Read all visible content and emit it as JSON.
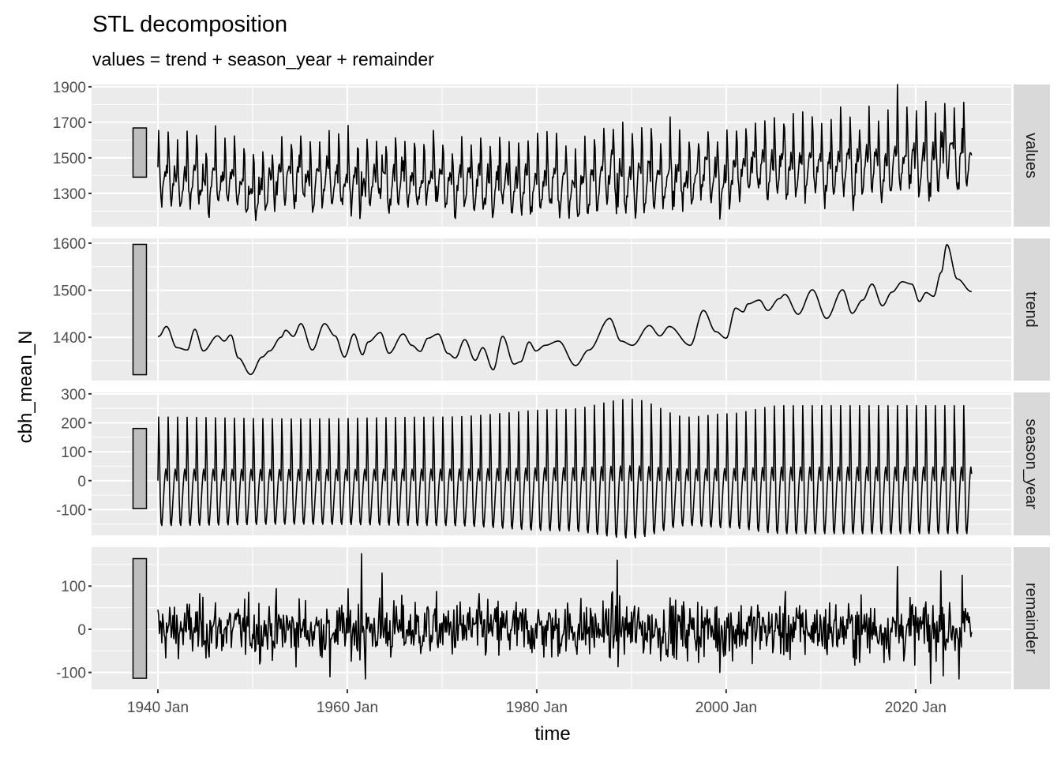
{
  "chart_data": {
    "type": "line",
    "title": "STL decomposition",
    "subtitle": "values = trend + season_year + remainder",
    "xlabel": "time",
    "ylabel": "cbh_mean_N",
    "x_range": [
      "1940 Jan",
      "2025 Dec"
    ],
    "xlim": [
      1933.0,
      2030.1
    ],
    "x_ticks": [
      {
        "value": 1940,
        "label": "1940 Jan"
      },
      {
        "value": 1960,
        "label": "1960 Jan"
      },
      {
        "value": 1980,
        "label": "1980 Jan"
      },
      {
        "value": 2000,
        "label": "2000 Jan"
      },
      {
        "value": 2020,
        "label": "2020 Jan"
      }
    ],
    "x_minor": [
      1950,
      1970,
      1990,
      2010
    ],
    "grid": true,
    "scale_bar_range": 277,
    "facets": [
      {
        "name": "values",
        "ylim": [
          1113,
          1913
        ],
        "ticks": [
          "1300",
          "1500",
          "1700",
          "1900"
        ],
        "minor": [
          1200,
          1400,
          1600,
          1800
        ]
      },
      {
        "name": "trend",
        "ylim": [
          1308,
          1610
        ],
        "ticks": [
          "1400",
          "1500",
          "1600"
        ],
        "minor": [
          1350,
          1450,
          1550
        ]
      },
      {
        "name": "season_year",
        "ylim": [
          -189,
          305
        ],
        "ticks": [
          "-100",
          "0",
          "100",
          "200",
          "300"
        ],
        "minor": [
          -150,
          -50,
          50,
          150,
          250
        ]
      },
      {
        "name": "remainder",
        "ylim": [
          -139,
          190
        ],
        "ticks": [
          "-100",
          "0",
          "100"
        ],
        "minor": [
          -50,
          50,
          150
        ]
      }
    ],
    "series": {
      "start_year": 1940,
      "months": 1032,
      "trend_knots": [
        [
          1940.1,
          1402
        ],
        [
          1940.9,
          1423
        ],
        [
          1942,
          1378
        ],
        [
          1943.1,
          1373
        ],
        [
          1943.9,
          1417
        ],
        [
          1944.8,
          1371
        ],
        [
          1946.3,
          1403
        ],
        [
          1947,
          1392
        ],
        [
          1947.7,
          1405
        ],
        [
          1948.5,
          1356
        ],
        [
          1949.8,
          1321
        ],
        [
          1951,
          1358
        ],
        [
          1951.8,
          1371
        ],
        [
          1953,
          1400
        ],
        [
          1953.5,
          1415
        ],
        [
          1954.3,
          1402
        ],
        [
          1955.1,
          1429
        ],
        [
          1956.3,
          1373
        ],
        [
          1957.6,
          1429
        ],
        [
          1958.7,
          1403
        ],
        [
          1959.7,
          1358
        ],
        [
          1960.7,
          1407
        ],
        [
          1961.6,
          1363
        ],
        [
          1962.2,
          1390
        ],
        [
          1963.5,
          1410
        ],
        [
          1964.4,
          1366
        ],
        [
          1965.9,
          1407
        ],
        [
          1966.8,
          1383
        ],
        [
          1967.7,
          1370
        ],
        [
          1968.5,
          1398
        ],
        [
          1969.6,
          1407
        ],
        [
          1970.6,
          1366
        ],
        [
          1971.4,
          1356
        ],
        [
          1972.4,
          1395
        ],
        [
          1973.5,
          1351
        ],
        [
          1974.3,
          1378
        ],
        [
          1975.4,
          1331
        ],
        [
          1976.4,
          1402
        ],
        [
          1977.6,
          1343
        ],
        [
          1978.3,
          1348
        ],
        [
          1979.2,
          1390
        ],
        [
          1979.9,
          1371
        ],
        [
          1980.9,
          1383
        ],
        [
          1982.3,
          1392
        ],
        [
          1984.1,
          1340
        ],
        [
          1985.5,
          1373
        ],
        [
          1987.7,
          1440
        ],
        [
          1988.9,
          1392
        ],
        [
          1990.1,
          1383
        ],
        [
          1991.9,
          1425
        ],
        [
          1993,
          1403
        ],
        [
          1994,
          1423
        ],
        [
          1996.2,
          1383
        ],
        [
          1997.6,
          1457
        ],
        [
          1998.9,
          1412
        ],
        [
          2000,
          1398
        ],
        [
          2001,
          1462
        ],
        [
          2001.8,
          1454
        ],
        [
          2002.3,
          1471
        ],
        [
          2003.5,
          1479
        ],
        [
          2004.4,
          1457
        ],
        [
          2005.6,
          1482
        ],
        [
          2006.2,
          1491
        ],
        [
          2007.6,
          1449
        ],
        [
          2009.1,
          1501
        ],
        [
          2010.6,
          1440
        ],
        [
          2012.3,
          1501
        ],
        [
          2013.3,
          1451
        ],
        [
          2014.4,
          1479
        ],
        [
          2015.4,
          1513
        ],
        [
          2016.5,
          1467
        ],
        [
          2017.5,
          1496
        ],
        [
          2018.6,
          1518
        ],
        [
          2019.6,
          1513
        ],
        [
          2020.4,
          1476
        ],
        [
          2021.1,
          1495
        ],
        [
          2021.9,
          1487
        ],
        [
          2022.7,
          1538
        ],
        [
          2023.3,
          1597
        ],
        [
          2024.4,
          1524
        ],
        [
          2025.9,
          1497
        ]
      ],
      "season_monthly": [
        0,
        220,
        110,
        -60,
        -145,
        -155,
        -120,
        -70,
        -20,
        20,
        40,
        20
      ],
      "season_amplitude_knots": [
        [
          1940,
          1.0
        ],
        [
          1955,
          0.97
        ],
        [
          1970,
          1.0
        ],
        [
          1983,
          1.12
        ],
        [
          1990,
          1.28
        ],
        [
          1996,
          1.0
        ],
        [
          2000,
          1.05
        ],
        [
          2006,
          1.18
        ],
        [
          2025.9,
          1.18
        ]
      ],
      "remainder_sd": 34,
      "remainder_spikes": [
        [
          1958.2,
          -110
        ],
        [
          1961.5,
          175
        ],
        [
          1961.9,
          -115
        ],
        [
          1963.7,
          130
        ],
        [
          1988.5,
          160
        ],
        [
          1999.3,
          -100
        ],
        [
          2018.1,
          145
        ],
        [
          2021.6,
          -125
        ],
        [
          2022.7,
          135
        ],
        [
          2024.6,
          -115
        ],
        [
          2024.9,
          125
        ]
      ]
    }
  }
}
